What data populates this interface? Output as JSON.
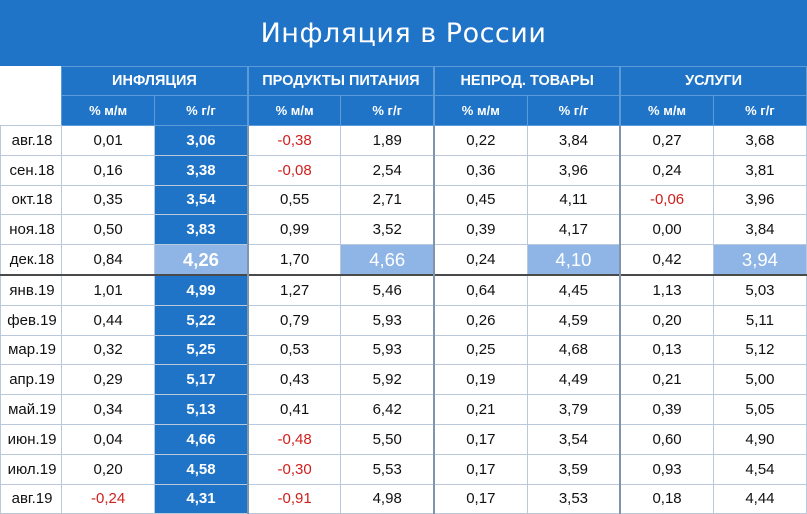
{
  "title": "Инфляция в России",
  "groups": [
    "ИНФЛЯЦИЯ",
    "ПРОДУКТЫ ПИТАНИЯ",
    "НЕПРОД. ТОВАРЫ",
    "УСЛУГИ"
  ],
  "sub_headers": [
    "% м/м",
    "% г/г"
  ],
  "highlight_month": "дек.18",
  "colors": {
    "header_blue": "#1f74c8",
    "december_highlight": "#8eb5e6",
    "negative_red": "#d0201e"
  },
  "chart_data": {
    "type": "table",
    "title": "Инфляция в России",
    "columns": [
      "ИНФЛЯЦИЯ % м/м",
      "ИНФЛЯЦИЯ % г/г",
      "ПРОДУКТЫ ПИТАНИЯ % м/м",
      "ПРОДУКТЫ ПИТАНИЯ % г/г",
      "НЕПРОД. ТОВАРЫ % м/м",
      "НЕПРОД. ТОВАРЫ % г/г",
      "УСЛУГИ % м/м",
      "УСЛУГИ % г/г"
    ],
    "rows": [
      {
        "month": "авг.18",
        "values": [
          "0,01",
          "3,06",
          "-0,38",
          "1,89",
          "0,22",
          "3,84",
          "0,27",
          "3,68"
        ]
      },
      {
        "month": "сен.18",
        "values": [
          "0,16",
          "3,38",
          "-0,08",
          "2,54",
          "0,36",
          "3,96",
          "0,24",
          "3,81"
        ]
      },
      {
        "month": "окт.18",
        "values": [
          "0,35",
          "3,54",
          "0,55",
          "2,71",
          "0,45",
          "4,11",
          "-0,06",
          "3,96"
        ]
      },
      {
        "month": "ноя.18",
        "values": [
          "0,50",
          "3,83",
          "0,99",
          "3,52",
          "0,39",
          "4,17",
          "0,00",
          "3,84"
        ]
      },
      {
        "month": "дек.18",
        "values": [
          "0,84",
          "4,26",
          "1,70",
          "4,66",
          "0,24",
          "4,10",
          "0,42",
          "3,94"
        ]
      },
      {
        "month": "янв.19",
        "values": [
          "1,01",
          "4,99",
          "1,27",
          "5,46",
          "0,64",
          "4,45",
          "1,13",
          "5,03"
        ]
      },
      {
        "month": "фев.19",
        "values": [
          "0,44",
          "5,22",
          "0,79",
          "5,93",
          "0,26",
          "4,59",
          "0,20",
          "5,11"
        ]
      },
      {
        "month": "мар.19",
        "values": [
          "0,32",
          "5,25",
          "0,53",
          "5,93",
          "0,25",
          "4,68",
          "0,13",
          "5,12"
        ]
      },
      {
        "month": "апр.19",
        "values": [
          "0,29",
          "5,17",
          "0,43",
          "5,92",
          "0,19",
          "4,49",
          "0,21",
          "5,00"
        ]
      },
      {
        "month": "май.19",
        "values": [
          "0,34",
          "5,13",
          "0,41",
          "6,42",
          "0,21",
          "3,79",
          "0,39",
          "5,05"
        ]
      },
      {
        "month": "июн.19",
        "values": [
          "0,04",
          "4,66",
          "-0,48",
          "5,50",
          "0,17",
          "3,54",
          "0,60",
          "4,90"
        ]
      },
      {
        "month": "июл.19",
        "values": [
          "0,20",
          "4,58",
          "-0,30",
          "5,53",
          "0,17",
          "3,59",
          "0,93",
          "4,54"
        ]
      },
      {
        "month": "авг.19",
        "values": [
          "-0,24",
          "4,31",
          "-0,91",
          "4,98",
          "0,17",
          "3,53",
          "0,18",
          "4,44"
        ]
      }
    ]
  }
}
